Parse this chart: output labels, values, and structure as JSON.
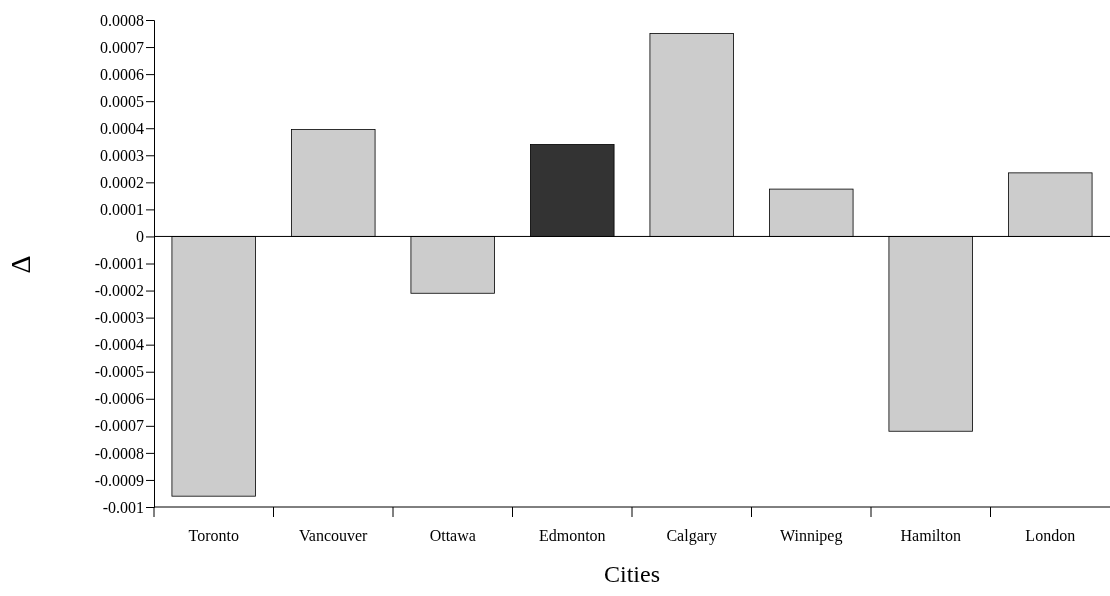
{
  "chart_data": {
    "type": "bar",
    "xlabel": "Cities",
    "ylabel": "Δ",
    "categories": [
      "Toronto",
      "Vancouver",
      "Ottawa",
      "Edmonton",
      "Calgary",
      "Winnipeg",
      "Hamilton",
      "London"
    ],
    "values": [
      -0.00096,
      0.000395,
      -0.00021,
      0.00034,
      0.00075,
      0.000175,
      -0.00072,
      0.000235
    ],
    "colors": [
      "#cccccc",
      "#cccccc",
      "#cccccc",
      "#333333",
      "#cccccc",
      "#cccccc",
      "#cccccc",
      "#cccccc"
    ],
    "ylim": [
      -0.001,
      0.0008
    ],
    "yticks": [
      -0.001,
      -0.0009,
      -0.0008,
      -0.0007,
      -0.0006,
      -0.0005,
      -0.0004,
      -0.0003,
      -0.0002,
      -0.0001,
      0,
      0.0001,
      0.0002,
      0.0003,
      0.0004,
      0.0005,
      0.0006,
      0.0007,
      0.0008
    ]
  }
}
